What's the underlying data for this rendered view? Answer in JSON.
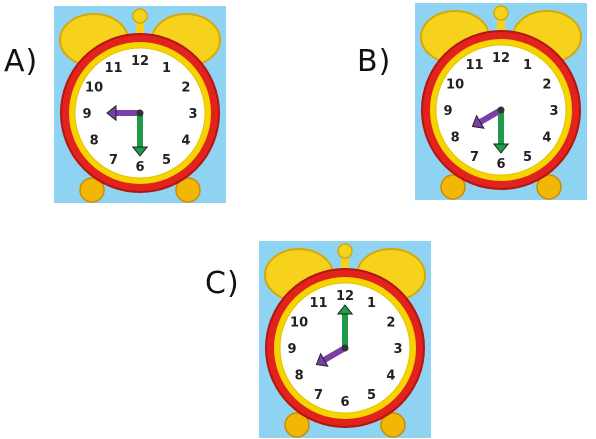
{
  "options": [
    {
      "label": "A)",
      "hour_hand_points_to": 9,
      "minute_hand_points_to": 6
    },
    {
      "label": "B)",
      "hour_hand_points_to": 8,
      "minute_hand_points_to": 6
    },
    {
      "label": "C)",
      "hour_hand_points_to": 8,
      "minute_hand_points_to": 12
    }
  ],
  "clock_numbers": [
    "12",
    "1",
    "2",
    "3",
    "4",
    "5",
    "6",
    "7",
    "8",
    "9",
    "10",
    "11"
  ],
  "colors": {
    "background_tile": "#8fd3f2",
    "bell": "#f7d21c",
    "rim_outer": "#e2221c",
    "rim_inner": "#f6d400",
    "face": "#ffffff",
    "hour_hand": "#7a3fa8",
    "minute_hand": "#1f9a4a",
    "feet": "#f2b705"
  }
}
